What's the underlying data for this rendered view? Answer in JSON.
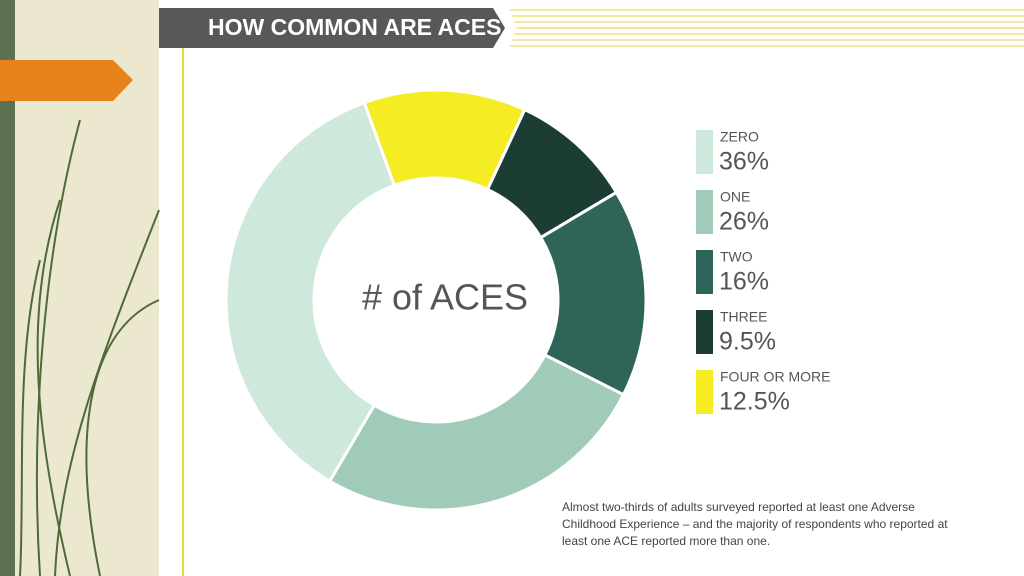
{
  "chart_data": {
    "type": "donut",
    "title": "HOW COMMON ARE ACES?",
    "center_label": "# of ACES",
    "categories": [
      "ZERO",
      "ONE",
      "TWO",
      "THREE",
      "FOUR OR MORE"
    ],
    "values": [
      36,
      26,
      16,
      9.5,
      12.5
    ],
    "value_labels": [
      "36%",
      "26%",
      "16%",
      "9.5%",
      "12.5%"
    ],
    "colors": [
      "#cfe8dc",
      "#9fcbb8",
      "#2f6558",
      "#1c3d34",
      "#f5ec23"
    ],
    "note": "Almost two-thirds of adults surveyed reported at least one Adverse Childhood Experience – and the majority of respondents who reported at least one ACE reported more than one."
  }
}
